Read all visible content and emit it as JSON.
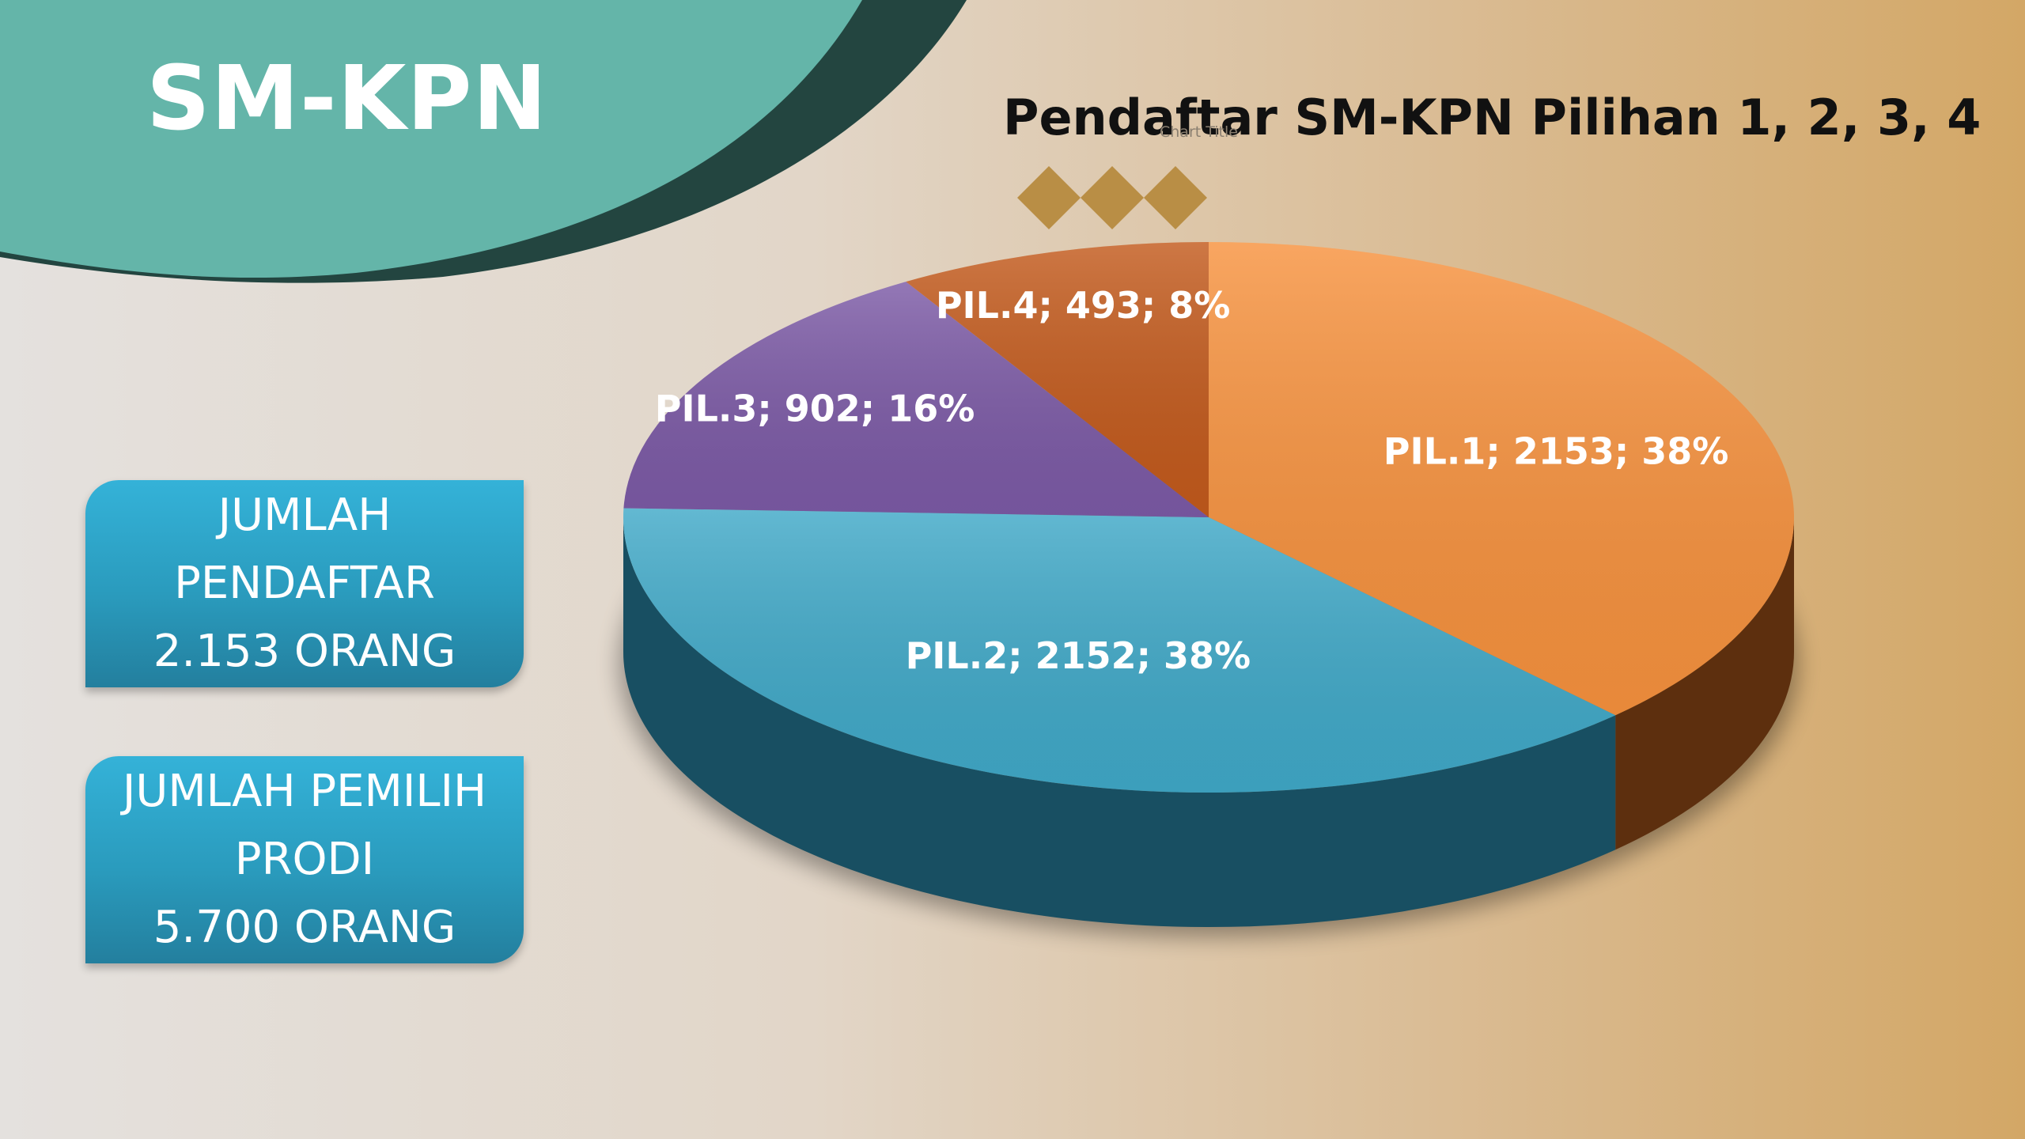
{
  "slide": {
    "title": "SM-KPN"
  },
  "info_boxes": [
    {
      "lines": [
        "JUMLAH",
        "PENDAFTAR",
        "2.153 ORANG"
      ]
    },
    {
      "lines": [
        "JUMLAH PEMILIH",
        "PRODI",
        "5.700 ORANG"
      ]
    }
  ],
  "colors": {
    "teal_shape": "#64b5a9",
    "dark_shape": "#234540",
    "diamond": "#b98e45",
    "box_blue": "#2fa6cb"
  },
  "chart_data": {
    "type": "pie",
    "style": "3d",
    "title": "Pendaftar SM-KPN Pilihan 1, 2, 3, 4",
    "placeholder_title": "Chart Title",
    "slices": [
      {
        "name": "PIL.1",
        "value": 2153,
        "percent": "38%",
        "label": "PIL.1; 2153; 38%",
        "color": "#f7923e",
        "side": "#6a3610"
      },
      {
        "name": "PIL.2",
        "value": 2152,
        "percent": "38%",
        "label": "PIL.2; 2152; 38%",
        "color": "#40a9c8",
        "side": "#1c5b70"
      },
      {
        "name": "PIL.3",
        "value": 902,
        "percent": "16%",
        "label": "PIL.3; 902; 16%",
        "color": "#7c5aa6",
        "side": "#3e2c55"
      },
      {
        "name": "PIL.4",
        "value": 493,
        "percent": "8%",
        "label": "PIL.4; 493; 8%",
        "color": "#c35a1c",
        "side": "#5e2a0d"
      }
    ]
  }
}
